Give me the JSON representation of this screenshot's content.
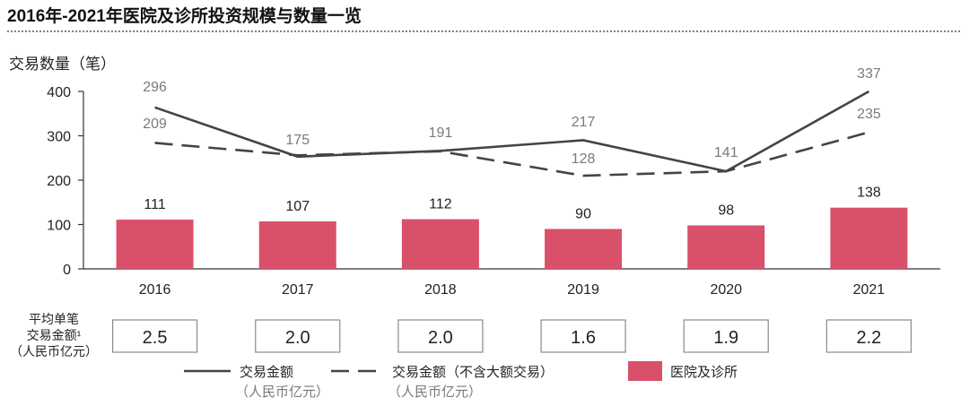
{
  "title": "2016年-2021年医院及诊所投资规模与数量一览",
  "chart_data": {
    "type": "bar",
    "title": "2016年-2021年医院及诊所投资规模与数量一览",
    "ylabel": "交易数量（笔）",
    "ylim": [
      0,
      400
    ],
    "yticks": [
      "0",
      "100",
      "200",
      "300",
      "400"
    ],
    "grid": false,
    "legend_position": "bottom",
    "categories": [
      "2016",
      "2017",
      "2018",
      "2019",
      "2020",
      "2021"
    ],
    "bar_series": {
      "name": "医院及诊所",
      "color": "#d9506a",
      "values": [
        111,
        107,
        112,
        90,
        98,
        138
      ]
    },
    "line_series": [
      {
        "name": "交易金额",
        "unit": "（人民币亿元）",
        "style": "solid",
        "color": "#444444",
        "labels": [
          296,
          175,
          191,
          217,
          141,
          337
        ],
        "values": [
          364,
          253,
          266,
          290,
          220,
          400
        ]
      },
      {
        "name": "交易金额（不含大额交易）",
        "unit": "（人民币亿元）",
        "style": "dashed",
        "color": "#444444",
        "labels": [
          209,
          128,
          235
        ],
        "label_years": [
          "2016",
          "2019",
          "2021"
        ],
        "values": [
          284,
          256,
          265,
          210,
          220,
          308
        ]
      }
    ],
    "avg_deal": {
      "label_lines": [
        "平均单笔",
        "交易金额¹",
        "（人民币亿元）"
      ],
      "values": [
        "2.5",
        "2.0",
        "2.0",
        "1.6",
        "1.9",
        "2.2"
      ]
    }
  }
}
